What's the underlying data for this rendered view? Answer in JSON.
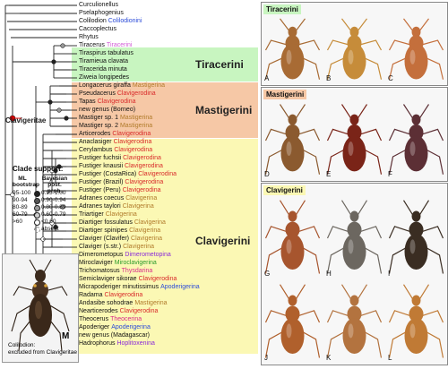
{
  "tribes": [
    {
      "name": "Tiracerini",
      "color": "#c8f5c0"
    },
    {
      "name": "Mastigerini",
      "color": "#f6c8a6"
    },
    {
      "name": "Clavigerini",
      "color": "#fbf8b4"
    }
  ],
  "clade_label": "Clavigeritae",
  "taxa": [
    {
      "name": "Curculionellus",
      "sub": "",
      "color": ""
    },
    {
      "name": "Pselaphogenius",
      "sub": "",
      "color": ""
    },
    {
      "name": "Colilodion",
      "sub": "Colilodionini",
      "color": "#2b4bd8"
    },
    {
      "name": "Caccoplectus",
      "sub": "",
      "color": ""
    },
    {
      "name": "Rhytus",
      "sub": "",
      "color": ""
    },
    {
      "name": "Tiracerus",
      "sub": "Tiracerini",
      "color": "#d25bd6"
    },
    {
      "name": "Tiraspirus tabulatus",
      "sub": "",
      "color": ""
    },
    {
      "name": "Tiramieua clavata",
      "sub": "",
      "color": ""
    },
    {
      "name": "Tiracerida minuta",
      "sub": "",
      "color": ""
    },
    {
      "name": "Ziweia longipedes",
      "sub": "",
      "color": ""
    },
    {
      "name": "Longacerus giraffa",
      "sub": "Mastigerina",
      "color": "#b07a2a"
    },
    {
      "name": "Pseudacerus",
      "sub": "Clavigerodina",
      "color": "#d82a2a"
    },
    {
      "name": "Tapas",
      "sub": "Clavigerodina",
      "color": "#d82a2a"
    },
    {
      "name": "new genus (Borneo)",
      "sub": "",
      "color": ""
    },
    {
      "name": "Mastiger sp. 1",
      "sub": "Mastigerina",
      "color": "#b07a2a"
    },
    {
      "name": "Mastiger sp. 2",
      "sub": "Mastigerina",
      "color": "#b07a2a"
    },
    {
      "name": "Articerodes",
      "sub": "Clavigerodina",
      "color": "#d82a2a"
    },
    {
      "name": "Anaclasiger",
      "sub": "Clavigerodina",
      "color": "#d82a2a"
    },
    {
      "name": "Cerylambus",
      "sub": "Clavigerodina",
      "color": "#d82a2a"
    },
    {
      "name": "Fustiger fuchsii",
      "sub": "Clavigerodina",
      "color": "#d82a2a"
    },
    {
      "name": "Fustiger knausii",
      "sub": "Clavigerodina",
      "color": "#d82a2a"
    },
    {
      "name": "Fustiger (CostaRica)",
      "sub": "Clavigerodina",
      "color": "#d82a2a"
    },
    {
      "name": "Fustiger (Brazil)",
      "sub": "Clavigerodina",
      "color": "#d82a2a"
    },
    {
      "name": "Fustiger (Peru)",
      "sub": "Clavigerodina",
      "color": "#d82a2a"
    },
    {
      "name": "Adranes coecus",
      "sub": "Clavigerina",
      "color": "#b07a2a"
    },
    {
      "name": "Adranes taylori",
      "sub": "Clavigerina",
      "color": "#b07a2a"
    },
    {
      "name": "Triartiger",
      "sub": "Clavigerina",
      "color": "#b07a2a"
    },
    {
      "name": "Diartiger fossulatus",
      "sub": "Clavigerina",
      "color": "#b07a2a"
    },
    {
      "name": "Diartiger spinipes",
      "sub": "Clavigerina",
      "color": "#b07a2a"
    },
    {
      "name": "Claviger (Clavifer)",
      "sub": "Clavigerina",
      "color": "#b07a2a"
    },
    {
      "name": "Claviger (s.str.)",
      "sub": "Clavigerina",
      "color": "#b07a2a"
    },
    {
      "name": "Dimerometopus",
      "sub": "Dimerometopina",
      "color": "#8a2ad8"
    },
    {
      "name": "Miroclaviger",
      "sub": "Miroclavigerina",
      "color": "#2a9a2a"
    },
    {
      "name": "Trichomatosus",
      "sub": "Thysdarina",
      "color": "#d82a8a"
    },
    {
      "name": "Semiclaviger sikorae",
      "sub": "Clavigerodina",
      "color": "#d82a2a"
    },
    {
      "name": "Micrapoderiger minutissimus",
      "sub": "Apoderigerina",
      "color": "#2b4bd8"
    },
    {
      "name": "Radama",
      "sub": "Clavigerodina",
      "color": "#d82a2a"
    },
    {
      "name": "Andasibe sohodrae",
      "sub": "Mastigerina",
      "color": "#b07a2a"
    },
    {
      "name": "Nearticerodes",
      "sub": "Clavigerodina",
      "color": "#d82a2a"
    },
    {
      "name": "Theocerus",
      "sub": "Theocerina",
      "color": "#d82a8a"
    },
    {
      "name": "Apoderiger",
      "sub": "Apoderigerina",
      "color": "#2b4bd8"
    },
    {
      "name": "new genus (Madagascar)",
      "sub": "",
      "color": ""
    },
    {
      "name": "Hadrophorus",
      "sub": "Hoplitoxenina",
      "color": "#8a2ad8"
    }
  ],
  "legend": {
    "title": "Clade support:",
    "col1": "ML bootstrap",
    "col2": "Bayesian post. prob.",
    "rows": [
      {
        "ml": "95-100",
        "bayes": "0.95-1.00"
      },
      {
        "ml": "90-94",
        "bayes": "0.90-0.94"
      },
      {
        "ml": "80-89",
        "bayes": "0.80-0.89"
      },
      {
        "ml": "60-79",
        "bayes": "0.60-0.79"
      },
      {
        "ml": ">60",
        "bayes": "<0.60"
      },
      {
        "ml": "",
        "bayes": "absent"
      }
    ]
  },
  "inset": {
    "letter": "M",
    "caption_line1": "Colilodion:",
    "caption_line2": "excluded from Clavigeritae"
  },
  "panels": [
    {
      "title": "Tiracerini",
      "color": "#c8f5c0",
      "letters": [
        "A",
        "B",
        "C"
      ]
    },
    {
      "title": "Mastigerini",
      "color": "#f6c8a6",
      "letters": [
        "D",
        "E",
        "F"
      ]
    },
    {
      "title": "Clavigerini",
      "color": "#fbf8b4",
      "letters": [
        "G",
        "H",
        "I",
        "J",
        "K",
        "L"
      ]
    }
  ]
}
